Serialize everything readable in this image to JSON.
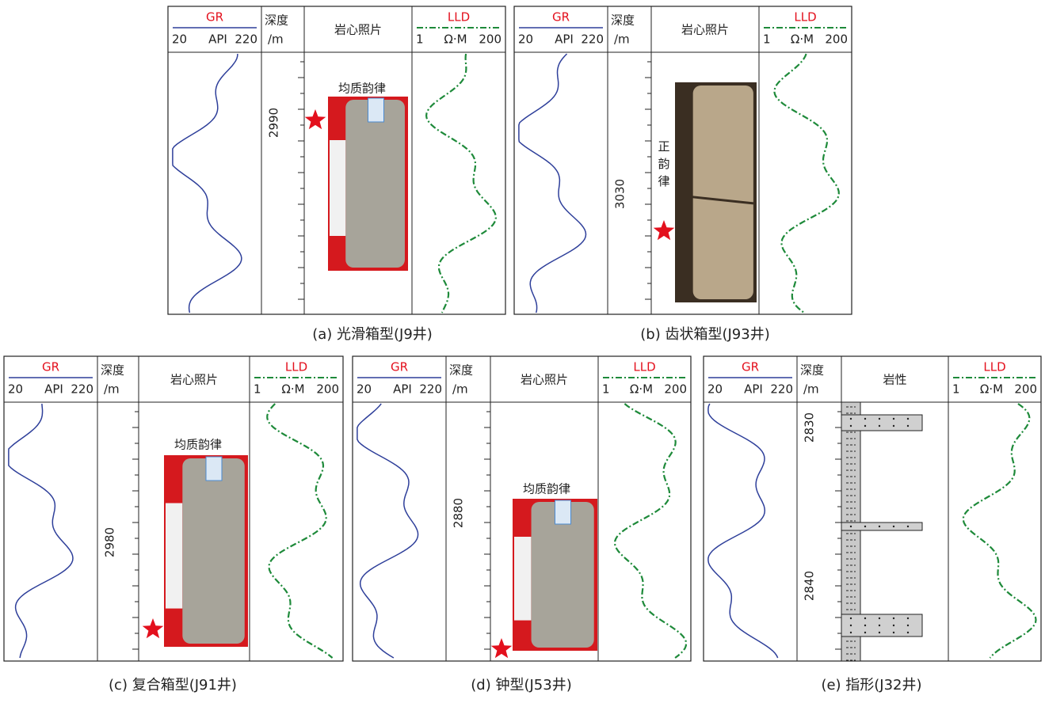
{
  "panels": [
    {
      "header": {
        "gr": "GR",
        "gr_min": 20,
        "gr_unit": "API",
        "gr_max": 220,
        "depth": "深度",
        "depth_unit": "/m",
        "column": "岩心照片",
        "lld": "LLD",
        "lld_min": 1,
        "lld_unit": "Ω·M",
        "lld_max": 200
      },
      "depth_labels": [
        2990
      ],
      "annotation": "均质韵律",
      "caption": "(a) 光滑箱型(J9井)"
    },
    {
      "header": {
        "gr": "GR",
        "gr_min": 20,
        "gr_unit": "API",
        "gr_max": 220,
        "depth": "深度",
        "depth_unit": "/m",
        "column": "岩心照片",
        "lld": "LLD",
        "lld_min": 1,
        "lld_unit": "Ω·M",
        "lld_max": 200
      },
      "depth_labels": [
        3030
      ],
      "annotation": "正韵律",
      "caption": "(b) 齿状箱型(J93井)"
    },
    {
      "header": {
        "gr": "GR",
        "gr_min": 20,
        "gr_unit": "API",
        "gr_max": 220,
        "depth": "深度",
        "depth_unit": "/m",
        "column": "岩心照片",
        "lld": "LLD",
        "lld_min": 1,
        "lld_unit": "Ω·M",
        "lld_max": 200
      },
      "depth_labels": [
        2980
      ],
      "annotation": "均质韵律",
      "caption": "(c) 复合箱型(J91井)"
    },
    {
      "header": {
        "gr": "GR",
        "gr_min": 20,
        "gr_unit": "API",
        "gr_max": 220,
        "depth": "深度",
        "depth_unit": "/m",
        "column": "岩心照片",
        "lld": "LLD",
        "lld_min": 1,
        "lld_unit": "Ω·M",
        "lld_max": 200
      },
      "depth_labels": [
        2880
      ],
      "annotation": "均质韵律",
      "caption": "(d) 钟型(J53井)"
    },
    {
      "header": {
        "gr": "GR",
        "gr_min": 20,
        "gr_unit": "API",
        "gr_max": 220,
        "depth": "深度",
        "depth_unit": "/m",
        "column": "岩性",
        "lld": "LLD",
        "lld_min": 1,
        "lld_unit": "Ω·M",
        "lld_max": 200
      },
      "depth_labels": [
        2830,
        2840
      ],
      "caption": "(e) 指形(J32井)"
    }
  ]
}
